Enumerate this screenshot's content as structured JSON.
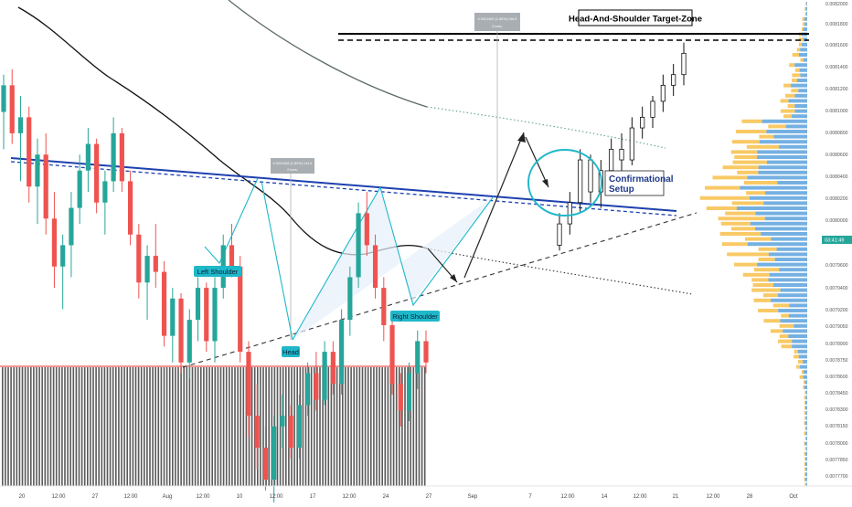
{
  "chart_data": {
    "type": "candlestick",
    "price_axis": {
      "ylim": [
        0.00776,
        0.00822
      ],
      "ticks": [
        "0.0082000",
        "0.0081800",
        "0.0081600",
        "0.0081400",
        "0.0081200",
        "0.0081000",
        "0.0080800",
        "0.0080600",
        "0.0080400",
        "0.0080200",
        "0.0080000",
        "0.0079800",
        "0.0079600",
        "0.0079400",
        "0.0079200",
        "0.0079050",
        "0.0078900",
        "0.0078750",
        "0.0078600",
        "0.0078450",
        "0.0078300",
        "0.0078150",
        "0.0078000",
        "0.0077850",
        "0.0077700"
      ],
      "current_price_label": "0.0079893",
      "countdown_label": "03:41:49",
      "current_price_value": 0.0079893
    },
    "time_axis": {
      "ticks": [
        "20",
        "12:00",
        "27",
        "12:00",
        "Aug",
        "12:00",
        "10",
        "12:00",
        "17",
        "12:00",
        "24",
        "27",
        "Sep",
        "7",
        "12:00",
        "14",
        "12:00",
        "21",
        "12:00",
        "28",
        "Oct"
      ]
    },
    "candles": [
      {
        "o": 0.008115,
        "h": 0.00815,
        "l": 0.00808,
        "c": 0.00814
      },
      {
        "o": 0.00814,
        "h": 0.008155,
        "l": 0.008085,
        "c": 0.008095
      },
      {
        "o": 0.008095,
        "h": 0.00813,
        "l": 0.00805,
        "c": 0.00811
      },
      {
        "o": 0.00811,
        "h": 0.00812,
        "l": 0.00803,
        "c": 0.008045
      },
      {
        "o": 0.008045,
        "h": 0.00809,
        "l": 0.00801,
        "c": 0.008075
      },
      {
        "o": 0.008075,
        "h": 0.008095,
        "l": 0.008,
        "c": 0.008015
      },
      {
        "o": 0.008015,
        "h": 0.00804,
        "l": 0.00795,
        "c": 0.00797
      },
      {
        "o": 0.00797,
        "h": 0.008,
        "l": 0.00793,
        "c": 0.00799
      },
      {
        "o": 0.00799,
        "h": 0.00804,
        "l": 0.00796,
        "c": 0.008025
      },
      {
        "o": 0.008025,
        "h": 0.008075,
        "l": 0.00801,
        "c": 0.00806
      },
      {
        "o": 0.00806,
        "h": 0.0081,
        "l": 0.00804,
        "c": 0.008085
      },
      {
        "o": 0.008085,
        "h": 0.00809,
        "l": 0.00802,
        "c": 0.00803
      },
      {
        "o": 0.00803,
        "h": 0.00806,
        "l": 0.008,
        "c": 0.00805
      },
      {
        "o": 0.00805,
        "h": 0.00811,
        "l": 0.00804,
        "c": 0.008095
      },
      {
        "o": 0.008095,
        "h": 0.0081,
        "l": 0.00804,
        "c": 0.00805
      },
      {
        "o": 0.00805,
        "h": 0.00806,
        "l": 0.00799,
        "c": 0.008
      },
      {
        "o": 0.008,
        "h": 0.00801,
        "l": 0.00794,
        "c": 0.007955
      },
      {
        "o": 0.007955,
        "h": 0.00799,
        "l": 0.00792,
        "c": 0.00798
      },
      {
        "o": 0.00798,
        "h": 0.00801,
        "l": 0.00795,
        "c": 0.007965
      },
      {
        "o": 0.007965,
        "h": 0.007975,
        "l": 0.007895,
        "c": 0.007905
      },
      {
        "o": 0.007905,
        "h": 0.00795,
        "l": 0.00788,
        "c": 0.00794
      },
      {
        "o": 0.00794,
        "h": 0.007945,
        "l": 0.00787,
        "c": 0.00788
      },
      {
        "o": 0.00788,
        "h": 0.00793,
        "l": 0.007865,
        "c": 0.00792
      },
      {
        "o": 0.00792,
        "h": 0.00796,
        "l": 0.0079,
        "c": 0.00795
      },
      {
        "o": 0.00795,
        "h": 0.007955,
        "l": 0.00789,
        "c": 0.0079
      },
      {
        "o": 0.0079,
        "h": 0.00796,
        "l": 0.00788,
        "c": 0.00795
      },
      {
        "o": 0.00795,
        "h": 0.008,
        "l": 0.00794,
        "c": 0.00799
      },
      {
        "o": 0.00799,
        "h": 0.00801,
        "l": 0.00796,
        "c": 0.00797
      },
      {
        "o": 0.00797,
        "h": 0.00798,
        "l": 0.00788,
        "c": 0.00789
      },
      {
        "o": 0.00789,
        "h": 0.0079,
        "l": 0.00781,
        "c": 0.00783
      },
      {
        "o": 0.00783,
        "h": 0.00786,
        "l": 0.00778,
        "c": 0.0078
      },
      {
        "o": 0.0078,
        "h": 0.00782,
        "l": 0.00776,
        "c": 0.00777
      },
      {
        "o": 0.00777,
        "h": 0.00783,
        "l": 0.007745,
        "c": 0.00782
      },
      {
        "o": 0.00782,
        "h": 0.00785,
        "l": 0.0078,
        "c": 0.00783
      },
      {
        "o": 0.00783,
        "h": 0.00784,
        "l": 0.00779,
        "c": 0.0078
      },
      {
        "o": 0.0078,
        "h": 0.00785,
        "l": 0.00779,
        "c": 0.00784
      },
      {
        "o": 0.00784,
        "h": 0.00788,
        "l": 0.00783,
        "c": 0.00787
      },
      {
        "o": 0.00787,
        "h": 0.00789,
        "l": 0.007835,
        "c": 0.007845
      },
      {
        "o": 0.007845,
        "h": 0.0079,
        "l": 0.00784,
        "c": 0.00789
      },
      {
        "o": 0.00789,
        "h": 0.0079,
        "l": 0.00785,
        "c": 0.00786
      },
      {
        "o": 0.00786,
        "h": 0.00793,
        "l": 0.00785,
        "c": 0.00792
      },
      {
        "o": 0.00792,
        "h": 0.00797,
        "l": 0.007905,
        "c": 0.00796
      },
      {
        "o": 0.00796,
        "h": 0.00803,
        "l": 0.00795,
        "c": 0.00802
      },
      {
        "o": 0.00802,
        "h": 0.00804,
        "l": 0.00798,
        "c": 0.00799
      },
      {
        "o": 0.00799,
        "h": 0.008,
        "l": 0.00794,
        "c": 0.00795
      },
      {
        "o": 0.00795,
        "h": 0.00796,
        "l": 0.0079,
        "c": 0.007915
      },
      {
        "o": 0.007915,
        "h": 0.007925,
        "l": 0.00785,
        "c": 0.00786
      },
      {
        "o": 0.00786,
        "h": 0.00787,
        "l": 0.00782,
        "c": 0.007835
      },
      {
        "o": 0.007835,
        "h": 0.00788,
        "l": 0.007825,
        "c": 0.00787
      },
      {
        "o": 0.00787,
        "h": 0.00791,
        "l": 0.007855,
        "c": 0.0079
      },
      {
        "o": 0.0079,
        "h": 0.00791,
        "l": 0.00787,
        "c": 0.00788
      }
    ],
    "forecast_candles": [
      {
        "o": 0.00799,
        "h": 0.00802,
        "l": 0.007985,
        "c": 0.00801
      },
      {
        "o": 0.00801,
        "h": 0.00804,
        "l": 0.008,
        "c": 0.00803
      },
      {
        "o": 0.00803,
        "h": 0.00808,
        "l": 0.00802,
        "c": 0.00807
      },
      {
        "o": 0.00807,
        "h": 0.008075,
        "l": 0.00803,
        "c": 0.00804
      },
      {
        "o": 0.00804,
        "h": 0.00807,
        "l": 0.008025,
        "c": 0.00806
      },
      {
        "o": 0.00806,
        "h": 0.00809,
        "l": 0.00805,
        "c": 0.00808
      },
      {
        "o": 0.00808,
        "h": 0.008095,
        "l": 0.00806,
        "c": 0.00807
      },
      {
        "o": 0.00807,
        "h": 0.00811,
        "l": 0.008065,
        "c": 0.0081
      },
      {
        "o": 0.0081,
        "h": 0.00812,
        "l": 0.00809,
        "c": 0.00811
      },
      {
        "o": 0.00811,
        "h": 0.00813,
        "l": 0.0081,
        "c": 0.008125
      },
      {
        "o": 0.008125,
        "h": 0.00815,
        "l": 0.008115,
        "c": 0.00814
      },
      {
        "o": 0.00814,
        "h": 0.00816,
        "l": 0.00813,
        "c": 0.00815
      },
      {
        "o": 0.00815,
        "h": 0.00818,
        "l": 0.00814,
        "c": 0.00817
      }
    ],
    "annotations": {
      "target_zone_label": "Head-And-Shoulder Target-Zone",
      "confirmational_label": "Confirmational\nSetup",
      "left_shoulder_label": "Left Shoulder",
      "head_label": "Head",
      "right_shoulder_label": "Right Shoulder",
      "measure_box_1": [
        "0.0001446 (1.83%) 144.6",
        "0 bars,"
      ],
      "measure_box_2": [
        "0.0001469 (1.85%) 146.9",
        "0 bars,"
      ]
    },
    "colors": {
      "up": "#26a69a",
      "down": "#ef5350",
      "neckline": "#1e40af",
      "callout": "#1fb8c9",
      "volume": "#5a5a5a",
      "volume_profile_buy": "#3b8fd6",
      "volume_profile_sell": "#f5b731"
    }
  }
}
